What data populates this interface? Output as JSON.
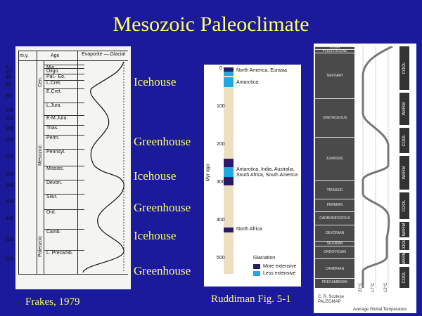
{
  "title": "Mesozoic Paleoclimate",
  "labels": [
    "Icehouse",
    "Greenhouse",
    "Icehouse",
    "Greenhouse",
    "Icehouse",
    "Greenhouse"
  ],
  "captions": {
    "left": "Frakes, 1979",
    "middle": "Ruddiman Fig. 5-1"
  },
  "frakes": {
    "header_my": "m.y.",
    "header_age": "Age",
    "header_curve": "Evaporite — Glacial",
    "ticks": [
      "5",
      "27",
      "45",
      "65",
      "96",
      "140",
      "165",
      "200",
      "225",
      "260",
      "320",
      "360",
      "400",
      "440",
      "500",
      "570"
    ],
    "eras": [
      "Cen.",
      "Mesozoic",
      "Paleozoic"
    ],
    "ages": [
      "Mio.",
      "Oligo.",
      "Pal.- Eo.",
      "L.Cret.",
      "E.Cret.",
      "L.Jura.",
      "E-M.Jura.",
      "Trias.",
      "Perm.",
      "Pennsyl.",
      "Mississ.",
      "Devon.",
      "Silur.",
      "Ord.",
      "Camb.",
      "L. Precamb."
    ]
  },
  "ruddiman": {
    "ylabel": "Myr ago",
    "ticks": [
      "0",
      "100",
      "200",
      "300",
      "400",
      "500"
    ],
    "events": [
      "North America, Eurasia",
      "Antarctica",
      "Antarctica, India, Australia, South Africa, South America",
      "North Africa"
    ],
    "legend_title": "Glaciation",
    "legend_more": "More extensive",
    "legend_less": "Less extensive",
    "colors": {
      "more": "#2a1a6a",
      "less": "#22a8e0"
    }
  },
  "paleomap": {
    "periods": [
      "TODAY",
      "PLEISTOCENE",
      "TERTIARY",
      "CRETACEOUS",
      "JURASSIC",
      "TRIASSIC",
      "PERMIAN",
      "CARBONIFEROUS",
      "DEVONIAN",
      "SILURIAN",
      "ORDOVICIAN",
      "CAMBRIAN",
      "PRECAMBRIAN"
    ],
    "bands": [
      "COOL",
      "WARM",
      "COOL",
      "WARM",
      "COOL",
      "WARM",
      "COOL",
      "WARM",
      "COOL"
    ],
    "temps": [
      "22°C",
      "17°C",
      "12°C"
    ],
    "credit": "C. R. Scotese PALEOMAP",
    "xlabel": "Average Global Temperature"
  }
}
